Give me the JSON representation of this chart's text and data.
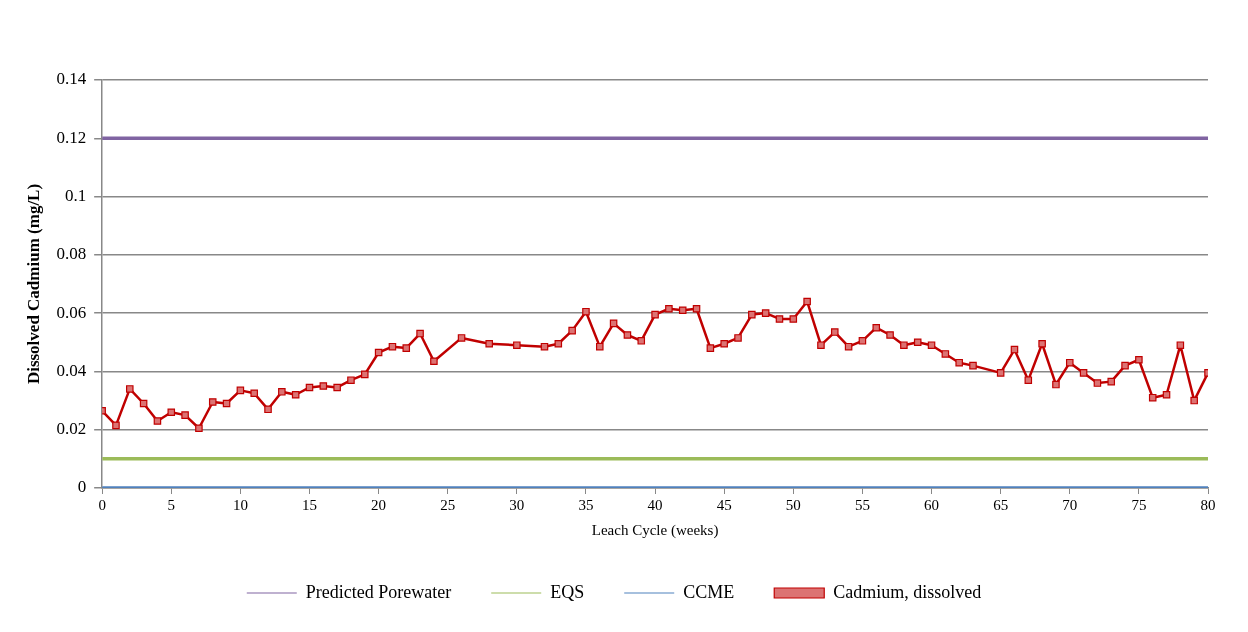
{
  "chart_data": {
    "type": "line",
    "xlabel": "Leach Cycle (weeks)",
    "ylabel": "Dissolved Cadmium (mg/L)",
    "xlim": [
      0,
      80
    ],
    "xticks": [
      0,
      5,
      10,
      15,
      20,
      25,
      30,
      35,
      40,
      45,
      50,
      55,
      60,
      65,
      70,
      75,
      80
    ],
    "ylim": [
      0,
      0.14
    ],
    "yticks": [
      0,
      0.02,
      0.04,
      0.06,
      0.08,
      0.1,
      0.12,
      0.14
    ],
    "grid": "y",
    "legend": "bottom",
    "series": [
      {
        "name": "Cadmium, dissolved",
        "color": "#c00000",
        "marker": "square",
        "x": [
          0,
          1,
          2,
          3,
          4,
          5,
          6,
          7,
          8,
          9,
          10,
          11,
          12,
          13,
          14,
          15,
          16,
          17,
          18,
          19,
          20,
          21,
          22,
          23,
          24,
          26,
          28,
          30,
          32,
          33,
          34,
          35,
          36,
          37,
          38,
          39,
          40,
          41,
          42,
          43,
          44,
          45,
          46,
          47,
          48,
          49,
          50,
          51,
          52,
          53,
          54,
          55,
          56,
          57,
          58,
          59,
          60,
          61,
          62,
          63,
          65,
          66,
          67,
          68,
          69,
          70,
          71,
          72,
          73,
          74,
          75,
          76,
          77,
          78,
          79,
          80
        ],
        "values": [
          0.0265,
          0.0215,
          0.034,
          0.029,
          0.023,
          0.026,
          0.025,
          0.0205,
          0.0295,
          0.029,
          0.0335,
          0.0325,
          0.027,
          0.033,
          0.032,
          0.0345,
          0.035,
          0.0345,
          0.037,
          0.039,
          0.0465,
          0.0485,
          0.048,
          0.053,
          0.0435,
          0.0515,
          0.0495,
          0.049,
          0.0485,
          0.0495,
          0.054,
          0.0605,
          0.0485,
          0.0565,
          0.0525,
          0.0505,
          0.0595,
          0.0615,
          0.061,
          0.0615,
          0.048,
          0.0495,
          0.0515,
          0.0595,
          0.06,
          0.058,
          0.058,
          0.064,
          0.049,
          0.0535,
          0.0485,
          0.0505,
          0.055,
          0.0525,
          0.049,
          0.05,
          0.049,
          0.046,
          0.043,
          0.042,
          0.0395,
          0.0475,
          0.037,
          0.0495,
          0.0355,
          0.043,
          0.0395,
          0.036,
          0.0365,
          0.042,
          0.044,
          0.031,
          0.032,
          0.049,
          0.03,
          0.0395
        ]
      },
      {
        "name": "CCME",
        "color": "#4f81bd",
        "marker": "none",
        "x": [
          0,
          80
        ],
        "values": [
          0,
          0
        ]
      },
      {
        "name": "EQS",
        "color": "#9bbb59",
        "marker": "none",
        "x": [
          0,
          80
        ],
        "values": [
          0.01,
          0.01
        ]
      },
      {
        "name": "Predicted Porewater",
        "color": "#8064a2",
        "marker": "none",
        "x": [
          0,
          80
        ],
        "values": [
          0.12,
          0.12
        ]
      }
    ]
  }
}
